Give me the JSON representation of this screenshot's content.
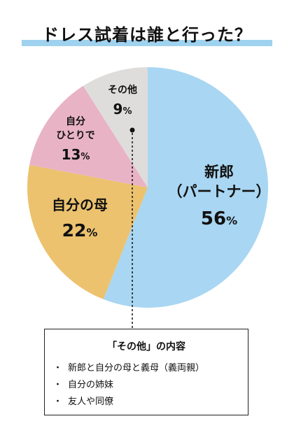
{
  "title": "ドレス試着は誰と行った？",
  "colors": {
    "title_bar": "#9fd2ee",
    "partner": "#a9d6f2",
    "mother": "#ecc26f",
    "alone": "#e9b3c6",
    "other": "#dedddc"
  },
  "chart_data": {
    "type": "pie",
    "title": "ドレス試着は誰と行った？",
    "legend": "none",
    "slices": [
      {
        "label_lines": [
          "新郎",
          "（パートナー）"
        ],
        "value": 56,
        "display": "56",
        "unit": "%",
        "color": "#a9d6f2"
      },
      {
        "label_lines": [
          "自分の母"
        ],
        "value": 22,
        "display": "22",
        "unit": "%",
        "color": "#ecc26f"
      },
      {
        "label_lines": [
          "自分",
          "ひとりで"
        ],
        "value": 13,
        "display": "13",
        "unit": "%",
        "color": "#e9b3c6"
      },
      {
        "label_lines": [
          "その他"
        ],
        "value": 9,
        "display": "9",
        "unit": "%",
        "color": "#dedddc"
      }
    ]
  },
  "note": {
    "title": "「その他」の内容",
    "bullet": "・",
    "items": [
      "新郎と自分の母と義母（義両親）",
      "自分の姉妹",
      "友人や同僚"
    ]
  }
}
